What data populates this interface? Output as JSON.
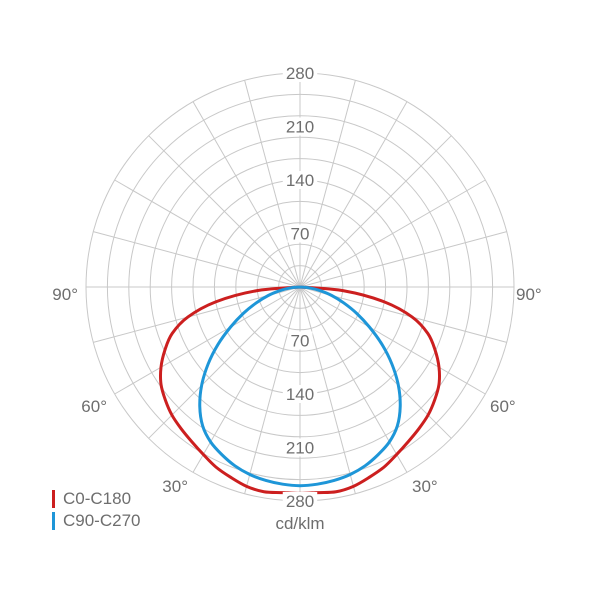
{
  "chart_data": {
    "type": "polar",
    "unit_label": "cd/klm",
    "radial_ticks": [
      70,
      140,
      210,
      280
    ],
    "rmax": 280,
    "angle_labels": [
      "90°",
      "60°",
      "30°",
      "90°",
      "60°",
      "30°"
    ],
    "series": [
      {
        "name": "C0-C180",
        "color": "#cc1f1f",
        "angles": [
          0,
          5,
          10,
          15,
          20,
          25,
          30,
          35,
          40,
          45,
          50,
          55,
          60,
          65,
          70,
          75,
          80,
          85,
          90
        ],
        "values": [
          270,
          270,
          272,
          270,
          265,
          260,
          253,
          247,
          242,
          237,
          230,
          222,
          210,
          195,
          178,
          152,
          112,
          58,
          0
        ]
      },
      {
        "name": "C90-C270",
        "color": "#1e96d8",
        "angles": [
          0,
          5,
          10,
          15,
          20,
          25,
          30,
          35,
          40,
          45,
          50,
          55,
          60,
          65,
          70,
          75,
          80,
          85,
          90
        ],
        "values": [
          260,
          259,
          257,
          254,
          249,
          242,
          234,
          222,
          204,
          182,
          157,
          131,
          105,
          82,
          61,
          43,
          26,
          12,
          0
        ]
      }
    ]
  }
}
